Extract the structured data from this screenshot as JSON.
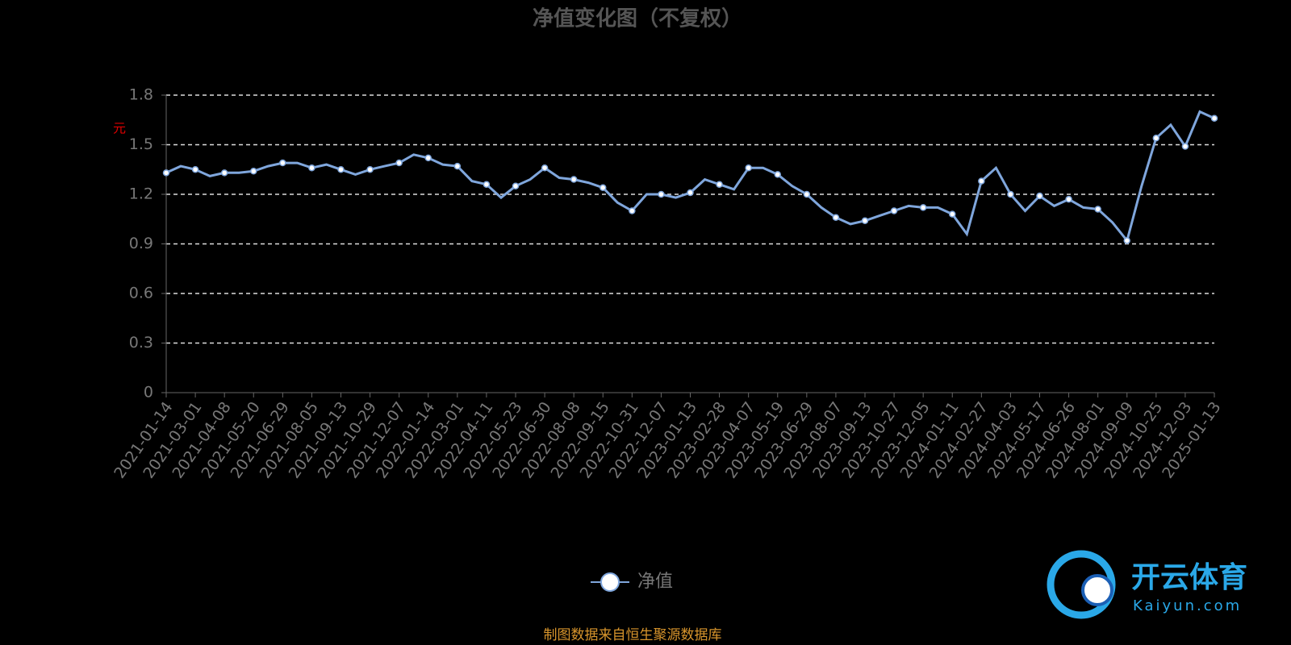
{
  "chart_data": {
    "type": "line",
    "title": "净值变化图（不复权）",
    "y_label": "元",
    "categories": [
      "2021-01-14",
      null,
      "2021-03-01",
      null,
      "2021-04-08",
      null,
      "2021-05-20",
      null,
      "2021-06-29",
      null,
      "2021-08-05",
      null,
      "2021-09-13",
      null,
      "2021-10-29",
      null,
      "2021-12-07",
      null,
      "2022-01-14",
      null,
      "2022-03-01",
      null,
      "2022-04-11",
      null,
      "2022-05-23",
      null,
      "2022-06-30",
      null,
      "2022-08-08",
      null,
      "2022-09-15",
      null,
      "2022-10-31",
      null,
      "2022-12-07",
      null,
      "2023-01-13",
      null,
      "2023-02-28",
      null,
      "2023-04-07",
      null,
      "2023-05-19",
      null,
      "2023-06-29",
      null,
      "2023-08-07",
      null,
      "2023-09-13",
      null,
      "2023-10-27",
      null,
      "2023-12-05",
      null,
      "2024-01-11",
      null,
      "2024-02-27",
      null,
      "2024-04-03",
      null,
      "2024-05-17",
      null,
      "2024-06-26",
      null,
      "2024-08-01",
      null,
      "2024-09-09",
      null,
      "2024-10-25",
      null,
      "2024-12-03",
      null,
      "2025-01-13"
    ],
    "series": [
      {
        "name": "净值",
        "color": "#7fa6dc",
        "values": [
          1.33,
          1.37,
          1.35,
          1.31,
          1.33,
          1.33,
          1.34,
          1.37,
          1.39,
          1.39,
          1.36,
          1.38,
          1.35,
          1.32,
          1.35,
          1.37,
          1.39,
          1.44,
          1.42,
          1.38,
          1.37,
          1.28,
          1.26,
          1.18,
          1.25,
          1.29,
          1.36,
          1.3,
          1.29,
          1.27,
          1.24,
          1.15,
          1.1,
          1.2,
          1.2,
          1.18,
          1.21,
          1.29,
          1.26,
          1.23,
          1.36,
          1.36,
          1.32,
          1.25,
          1.2,
          1.12,
          1.06,
          1.02,
          1.04,
          1.07,
          1.1,
          1.13,
          1.12,
          1.12,
          1.08,
          0.96,
          1.28,
          1.36,
          1.2,
          1.1,
          1.19,
          1.13,
          1.17,
          1.12,
          1.11,
          1.03,
          0.92,
          1.25,
          1.54,
          1.62,
          1.49,
          1.7,
          1.66
        ]
      }
    ],
    "ylim": [
      0,
      1.8
    ],
    "yticks": [
      0,
      0.3,
      0.6,
      0.9,
      1.2,
      1.5,
      1.8
    ],
    "grid": true,
    "legend": "bottom",
    "source": "制图数据来自恒生聚源数据库"
  },
  "watermark": {
    "brand": "开云体育",
    "site": "Kaiyun.com"
  }
}
